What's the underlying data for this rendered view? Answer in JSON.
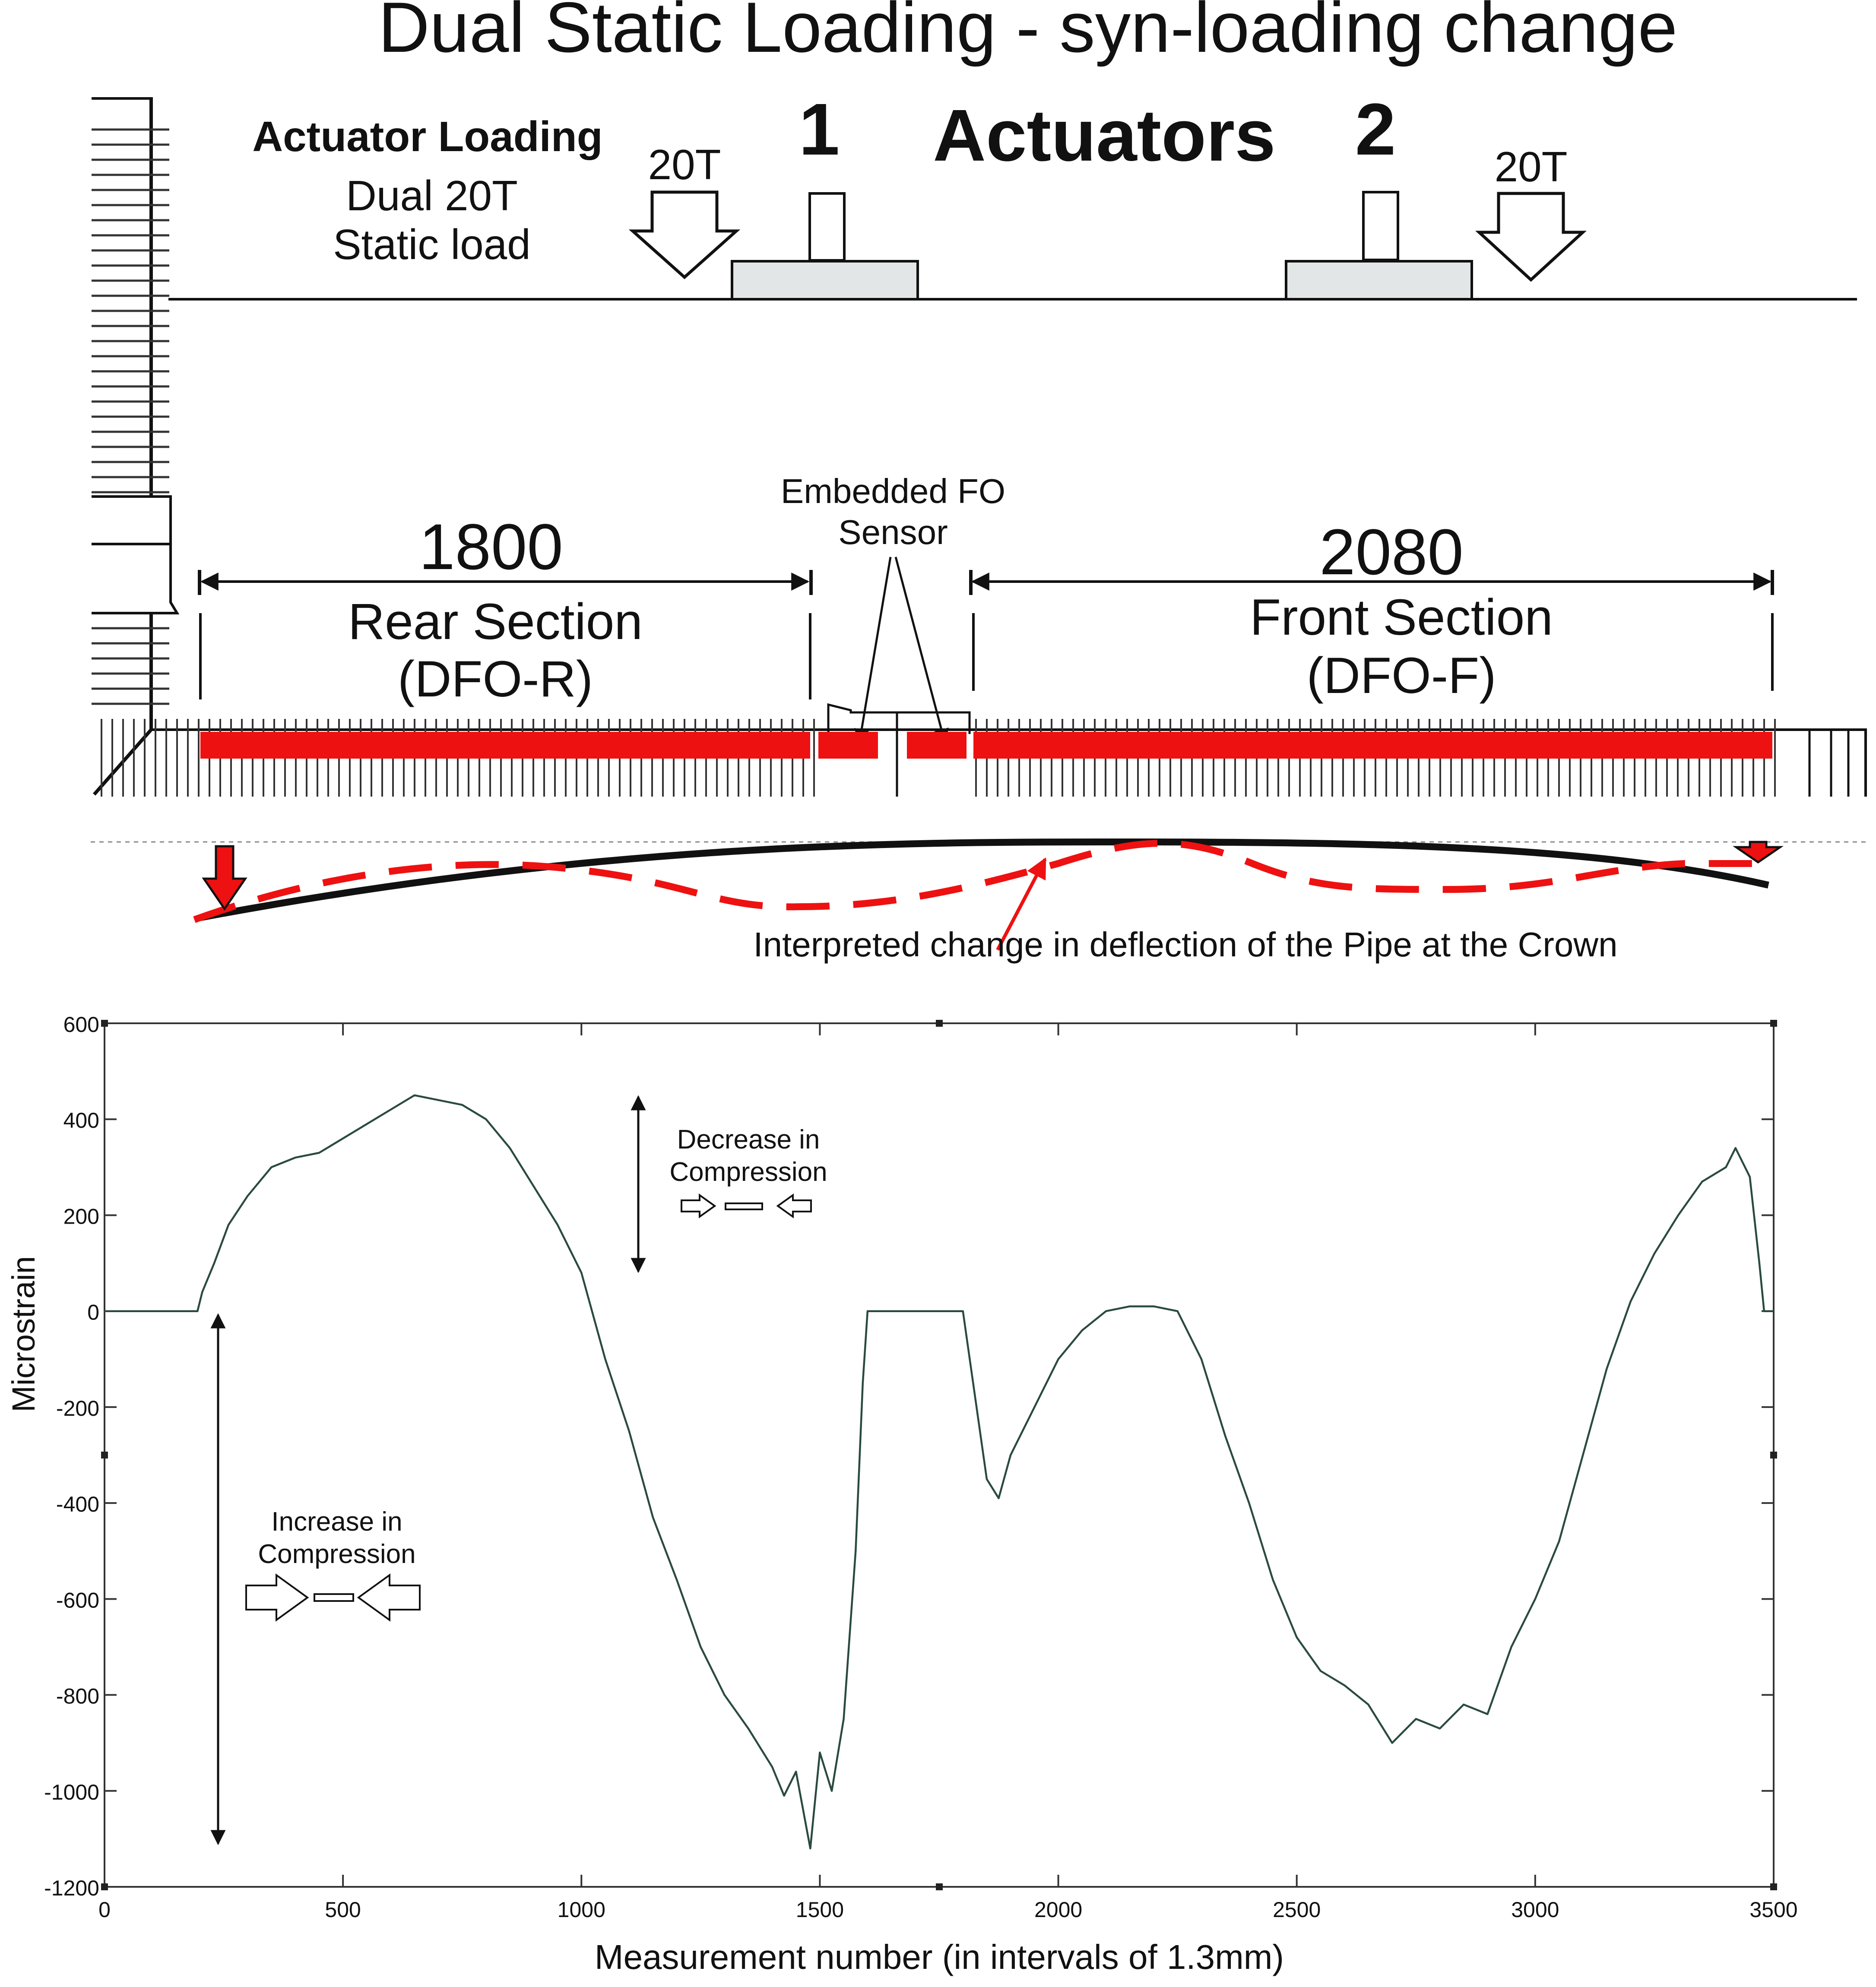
{
  "title": "Dual Static Loading - syn-loading change",
  "diagram": {
    "actuator_heading": "Actuator Loading",
    "actuator_desc_line1": "Dual 20T",
    "actuator_desc_line2": "Static load",
    "load_left": "20T",
    "load_right": "20T",
    "actuator_1": "1",
    "actuators_word": "Actuators",
    "actuator_2": "2",
    "sensor_line1": "Embedded FO",
    "sensor_line2": "Sensor",
    "rear_length": "1800",
    "rear_name": "Rear Section",
    "rear_code": "(DFO-R)",
    "front_length": "2080",
    "front_name": "Front Section",
    "front_code": "(DFO-F)",
    "deflection_note": "Interpreted change in deflection of the Pipe at the Crown",
    "colors": {
      "sensor": "#ee1111",
      "pipe": "#111111",
      "pad": "#e3e6e6"
    }
  },
  "chart_data": {
    "type": "line",
    "title": "",
    "xlabel": "Measurement number (in intervals of 1.3mm)",
    "ylabel": "Microstrain",
    "xlim": [
      0,
      3500
    ],
    "ylim": [
      -1200,
      600
    ],
    "xticks": [
      0,
      500,
      1000,
      1500,
      2000,
      2500,
      3000,
      3500
    ],
    "yticks": [
      600,
      400,
      200,
      0,
      -200,
      -400,
      -600,
      -800,
      -1000,
      -1200
    ],
    "xtick_labels": [
      "0",
      "500",
      "1000",
      "1500",
      "2000",
      "2500",
      "3000",
      "3500"
    ],
    "ytick_labels": [
      "600",
      "400",
      "200",
      "0",
      "-200",
      "-400",
      "-600",
      "-800",
      "-1000",
      "-1200"
    ],
    "line_color": "#2a4a40",
    "series": [
      {
        "x": [
          0,
          195,
          205,
          230,
          260,
          300,
          350,
          400,
          450,
          500,
          550,
          600,
          650,
          700,
          750,
          800,
          850,
          900,
          950,
          1000,
          1050,
          1100,
          1150,
          1200,
          1250,
          1300,
          1350,
          1400,
          1425,
          1450,
          1480,
          1500,
          1525,
          1550,
          1575,
          1590,
          1600,
          1700,
          1800,
          1850,
          1875,
          1900,
          1950,
          2000,
          2050,
          2100,
          2150,
          2200,
          2250,
          2300,
          2350,
          2400,
          2450,
          2500,
          2550,
          2600,
          2650,
          2700,
          2750,
          2800,
          2850,
          2900,
          2950,
          3000,
          3050,
          3100,
          3150,
          3200,
          3250,
          3300,
          3350,
          3400,
          3420,
          3450,
          3470,
          3480,
          3500
        ],
        "y": [
          0,
          0,
          40,
          100,
          180,
          240,
          300,
          320,
          330,
          360,
          390,
          420,
          450,
          440,
          430,
          400,
          340,
          260,
          180,
          80,
          -100,
          -250,
          -430,
          -560,
          -700,
          -800,
          -870,
          -950,
          -1010,
          -960,
          -1120,
          -920,
          -1000,
          -850,
          -500,
          -150,
          0,
          0,
          0,
          -350,
          -390,
          -300,
          -200,
          -100,
          -40,
          0,
          10,
          10,
          0,
          -100,
          -260,
          -400,
          -560,
          -680,
          -750,
          -780,
          -820,
          -900,
          -850,
          -870,
          -820,
          -840,
          -700,
          -600,
          -480,
          -300,
          -120,
          20,
          120,
          200,
          270,
          300,
          340,
          280,
          100,
          0,
          0
        ]
      }
    ],
    "annotations": [
      {
        "line1": "Decrease in",
        "line2": "Compression"
      },
      {
        "line1": "Increase in",
        "line2": "Compression"
      }
    ]
  }
}
